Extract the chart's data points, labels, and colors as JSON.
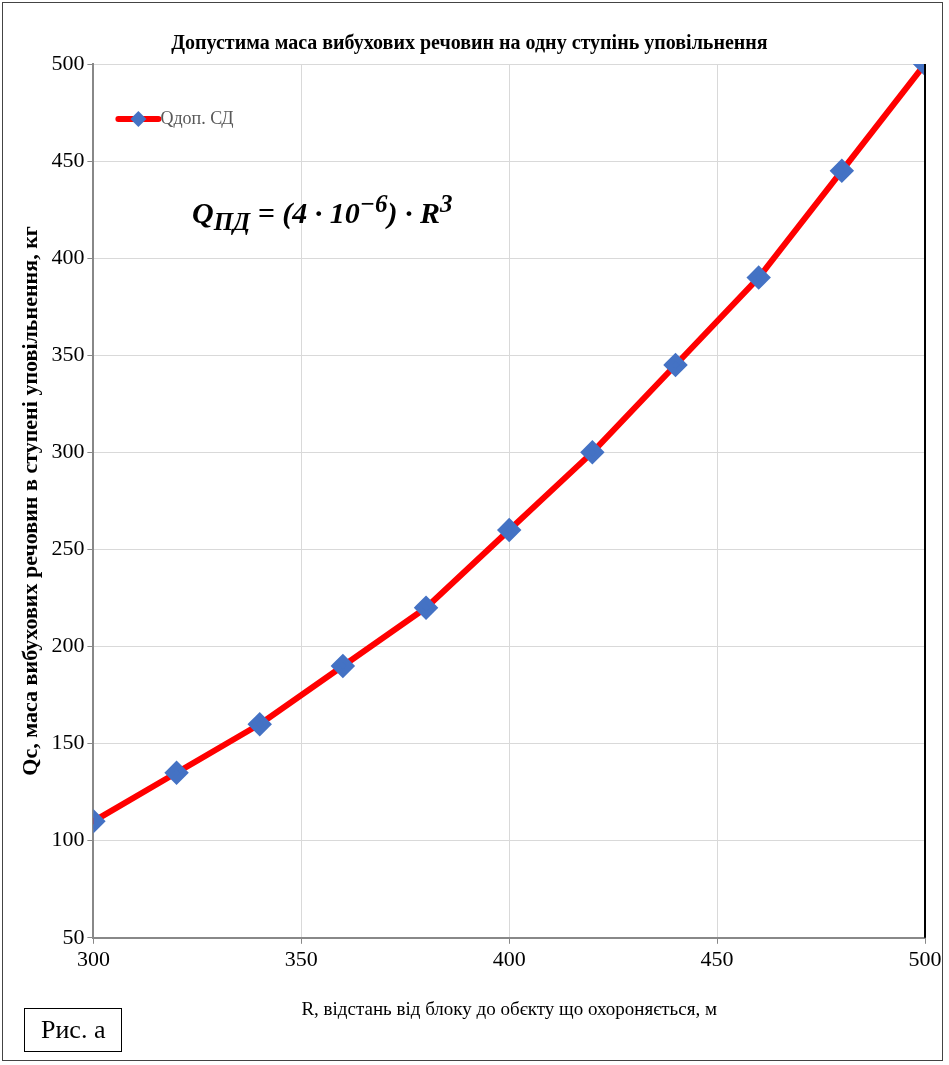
{
  "chart_data": {
    "type": "line",
    "title": "Допустима маса вибухових речовин на одну ступінь уповільнення",
    "xlabel": "R, відстань від блоку до обєкту що охороняється, м",
    "ylabel": "Qc, маса вибухових речовин в ступені уповільнення, кг",
    "x": [
      300,
      320,
      340,
      360,
      380,
      400,
      420,
      440,
      460,
      480,
      500
    ],
    "series": [
      {
        "name": "Qдоп. СД",
        "color": "#ff0000",
        "colors": [
          "#4472c4",
          "#4472c4",
          "#4472c4",
          "#4472c4",
          "#4472c4",
          "#4472c4",
          "#4472c4",
          "#4472c4",
          "#4472c4",
          "#4472c4",
          "#4472c4"
        ],
        "values": [
          110,
          135,
          160,
          190,
          220,
          260,
          300,
          345,
          390,
          445,
          500
        ]
      }
    ],
    "xlim": [
      300,
      500
    ],
    "xticks": [
      300,
      350,
      400,
      450,
      500
    ],
    "ylim": [
      50,
      500
    ],
    "yticks": [
      50,
      100,
      150,
      200,
      250,
      300,
      350,
      400,
      450,
      500
    ],
    "grid": true,
    "legend": "top left",
    "marker": "diamond",
    "line_style": "solid",
    "annotations": [
      "Q$_{ПД}$ = (4 · 10$^{−6}$) · R$^{3}$",
      "Рис. а"
    ]
  }
}
